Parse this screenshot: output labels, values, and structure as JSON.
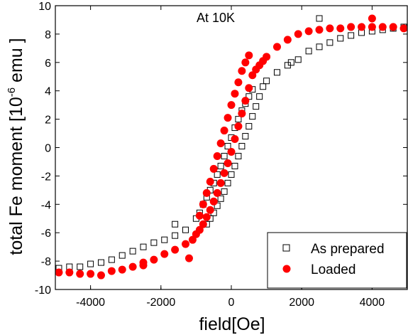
{
  "chart_data": {
    "type": "scatter",
    "title": "",
    "annotation": "At 10K",
    "xlabel": "field[Oe]",
    "ylabel_prefix": "total Fe moment [10",
    "ylabel_exp": "-6",
    "ylabel_suffix": " emu ]",
    "xlim": [
      -5000,
      5000
    ],
    "ylim": [
      -10,
      10
    ],
    "xticks": [
      -4000,
      -2000,
      0,
      2000,
      4000
    ],
    "yticks": [
      -10,
      -8,
      -6,
      -4,
      -2,
      0,
      2,
      4,
      6,
      8,
      10
    ],
    "grid": false,
    "legend_position": "bottom-right",
    "series": [
      {
        "name": "As prepared",
        "marker": "open-square",
        "color": "#000000",
        "points": [
          [
            -4900,
            -8.5
          ],
          [
            -4600,
            -8.4
          ],
          [
            -4300,
            -8.4
          ],
          [
            -4000,
            -8.2
          ],
          [
            -3700,
            -8.1
          ],
          [
            -3400,
            -7.9
          ],
          [
            -3100,
            -7.6
          ],
          [
            -2800,
            -7.3
          ],
          [
            -2500,
            -7.0
          ],
          [
            -2200,
            -6.7
          ],
          [
            -1900,
            -6.5
          ],
          [
            -1600,
            -6.2
          ],
          [
            -1300,
            -5.8
          ],
          [
            -1000,
            -5.0
          ],
          [
            -900,
            -4.6
          ],
          [
            -800,
            -4.0
          ],
          [
            -700,
            -3.5
          ],
          [
            -600,
            -3.0
          ],
          [
            -500,
            -2.5
          ],
          [
            -400,
            -1.9
          ],
          [
            -300,
            -1.3
          ],
          [
            -200,
            -0.6
          ],
          [
            -100,
            0.1
          ],
          [
            0,
            0.7
          ],
          [
            100,
            1.4
          ],
          [
            200,
            2.0
          ],
          [
            300,
            2.6
          ],
          [
            400,
            3.1
          ],
          [
            500,
            3.6
          ],
          [
            600,
            4.1
          ],
          [
            -700,
            -5.4
          ],
          [
            -600,
            -5.0
          ],
          [
            -500,
            -4.6
          ],
          [
            -400,
            -4.1
          ],
          [
            -300,
            -3.6
          ],
          [
            -200,
            -3.1
          ],
          [
            -100,
            -2.5
          ],
          [
            0,
            -1.9
          ],
          [
            100,
            -1.3
          ],
          [
            200,
            -0.6
          ],
          [
            300,
            0.1
          ],
          [
            400,
            0.8
          ],
          [
            500,
            1.5
          ],
          [
            600,
            2.2
          ],
          [
            700,
            2.9
          ],
          [
            800,
            3.6
          ],
          [
            900,
            4.3
          ],
          [
            1000,
            4.7
          ],
          [
            1300,
            5.3
          ],
          [
            1600,
            5.8
          ],
          [
            1900,
            6.2
          ],
          [
            2200,
            6.8
          ],
          [
            2500,
            7.1
          ],
          [
            2800,
            7.4
          ],
          [
            3100,
            7.7
          ],
          [
            3400,
            7.9
          ],
          [
            3700,
            8.1
          ],
          [
            4000,
            8.2
          ],
          [
            4300,
            8.3
          ],
          [
            4600,
            8.4
          ],
          [
            4900,
            8.5
          ],
          [
            2500,
            9.1
          ],
          [
            -1600,
            -5.4
          ],
          [
            1700,
            6.0
          ]
        ]
      },
      {
        "name": "Loaded",
        "marker": "filled-circle",
        "color": "#ff0000",
        "points": [
          [
            -4900,
            -8.8
          ],
          [
            -4600,
            -8.8
          ],
          [
            -4300,
            -8.9
          ],
          [
            -4000,
            -8.9
          ],
          [
            -3700,
            -9.0
          ],
          [
            -3400,
            -8.7
          ],
          [
            -3100,
            -8.6
          ],
          [
            -2800,
            -8.4
          ],
          [
            -2500,
            -8.3
          ],
          [
            -2200,
            -7.9
          ],
          [
            -1900,
            -7.5
          ],
          [
            -1600,
            -7.2
          ],
          [
            -1300,
            -6.8
          ],
          [
            -1100,
            -6.5
          ],
          [
            -1000,
            -6.1
          ],
          [
            -900,
            -5.8
          ],
          [
            -800,
            -5.4
          ],
          [
            -700,
            -4.9
          ],
          [
            -600,
            -4.4
          ],
          [
            -500,
            -3.8
          ],
          [
            -400,
            -3.2
          ],
          [
            -300,
            -2.5
          ],
          [
            -200,
            -1.8
          ],
          [
            -100,
            -1.1
          ],
          [
            0,
            -0.3
          ],
          [
            100,
            0.6
          ],
          [
            200,
            1.5
          ],
          [
            300,
            2.4
          ],
          [
            400,
            3.3
          ],
          [
            500,
            4.2
          ],
          [
            600,
            5.1
          ],
          [
            700,
            5.5
          ],
          [
            800,
            5.8
          ],
          [
            900,
            6.1
          ],
          [
            1000,
            6.4
          ],
          [
            -900,
            -4.8
          ],
          [
            -800,
            -4.0
          ],
          [
            -700,
            -3.2
          ],
          [
            -600,
            -2.4
          ],
          [
            -500,
            -1.5
          ],
          [
            -400,
            -0.6
          ],
          [
            -300,
            0.3
          ],
          [
            -200,
            1.2
          ],
          [
            -100,
            2.1
          ],
          [
            0,
            3.0
          ],
          [
            100,
            3.8
          ],
          [
            200,
            4.6
          ],
          [
            300,
            5.4
          ],
          [
            400,
            6.0
          ],
          [
            500,
            6.5
          ],
          [
            1300,
            7.1
          ],
          [
            1600,
            7.6
          ],
          [
            1900,
            8.0
          ],
          [
            2200,
            8.2
          ],
          [
            2500,
            8.3
          ],
          [
            2800,
            8.4
          ],
          [
            3100,
            8.4
          ],
          [
            3400,
            8.5
          ],
          [
            3700,
            8.5
          ],
          [
            4000,
            8.5
          ],
          [
            4300,
            8.5
          ],
          [
            4600,
            8.5
          ],
          [
            4900,
            8.4
          ],
          [
            -2500,
            -8.1
          ],
          [
            -1200,
            -7.8
          ],
          [
            4000,
            9.1
          ]
        ]
      }
    ]
  }
}
